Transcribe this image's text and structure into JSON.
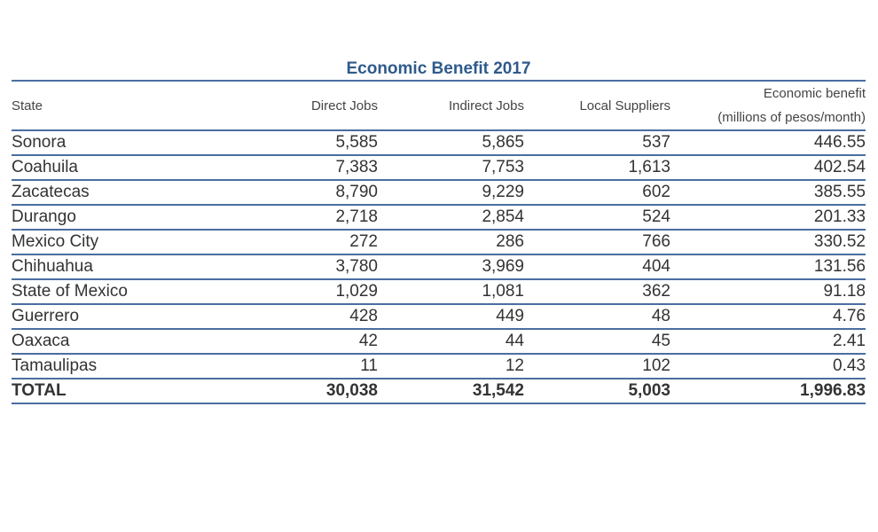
{
  "table": {
    "title": "Economic Benefit 2017",
    "headers": {
      "state": "State",
      "direct_jobs": "Direct Jobs",
      "indirect_jobs": "Indirect Jobs",
      "local_suppliers": "Local Suppliers",
      "economic_benefit_line1": "Economic benefit",
      "economic_benefit_line2": "(millions of pesos/month)"
    },
    "rows": [
      {
        "state": "Sonora",
        "direct_jobs": "5,585",
        "indirect_jobs": "5,865",
        "local_suppliers": "537",
        "economic_benefit": "446.55"
      },
      {
        "state": "Coahuila",
        "direct_jobs": "7,383",
        "indirect_jobs": "7,753",
        "local_suppliers": "1,613",
        "economic_benefit": "402.54"
      },
      {
        "state": "Zacatecas",
        "direct_jobs": "8,790",
        "indirect_jobs": "9,229",
        "local_suppliers": "602",
        "economic_benefit": "385.55"
      },
      {
        "state": "Durango",
        "direct_jobs": "2,718",
        "indirect_jobs": "2,854",
        "local_suppliers": "524",
        "economic_benefit": "201.33"
      },
      {
        "state": "Mexico City",
        "direct_jobs": "272",
        "indirect_jobs": "286",
        "local_suppliers": "766",
        "economic_benefit": "330.52"
      },
      {
        "state": "Chihuahua",
        "direct_jobs": "3,780",
        "indirect_jobs": "3,969",
        "local_suppliers": "404",
        "economic_benefit": "131.56"
      },
      {
        "state": "State of Mexico",
        "direct_jobs": "1,029",
        "indirect_jobs": "1,081",
        "local_suppliers": "362",
        "economic_benefit": "91.18"
      },
      {
        "state": "Guerrero",
        "direct_jobs": "428",
        "indirect_jobs": "449",
        "local_suppliers": "48",
        "economic_benefit": "4.76"
      },
      {
        "state": "Oaxaca",
        "direct_jobs": "42",
        "indirect_jobs": "44",
        "local_suppliers": "45",
        "economic_benefit": "2.41"
      },
      {
        "state": "Tamaulipas",
        "direct_jobs": "11",
        "indirect_jobs": "12",
        "local_suppliers": "102",
        "economic_benefit": "0.43"
      }
    ],
    "total": {
      "state": "TOTAL",
      "direct_jobs": "30,038",
      "indirect_jobs": "31,542",
      "local_suppliers": "5,003",
      "economic_benefit": "1,996.83"
    }
  },
  "colors": {
    "title": "#2f5a8c",
    "rule": "#4a6ea0",
    "text": "#333333"
  }
}
